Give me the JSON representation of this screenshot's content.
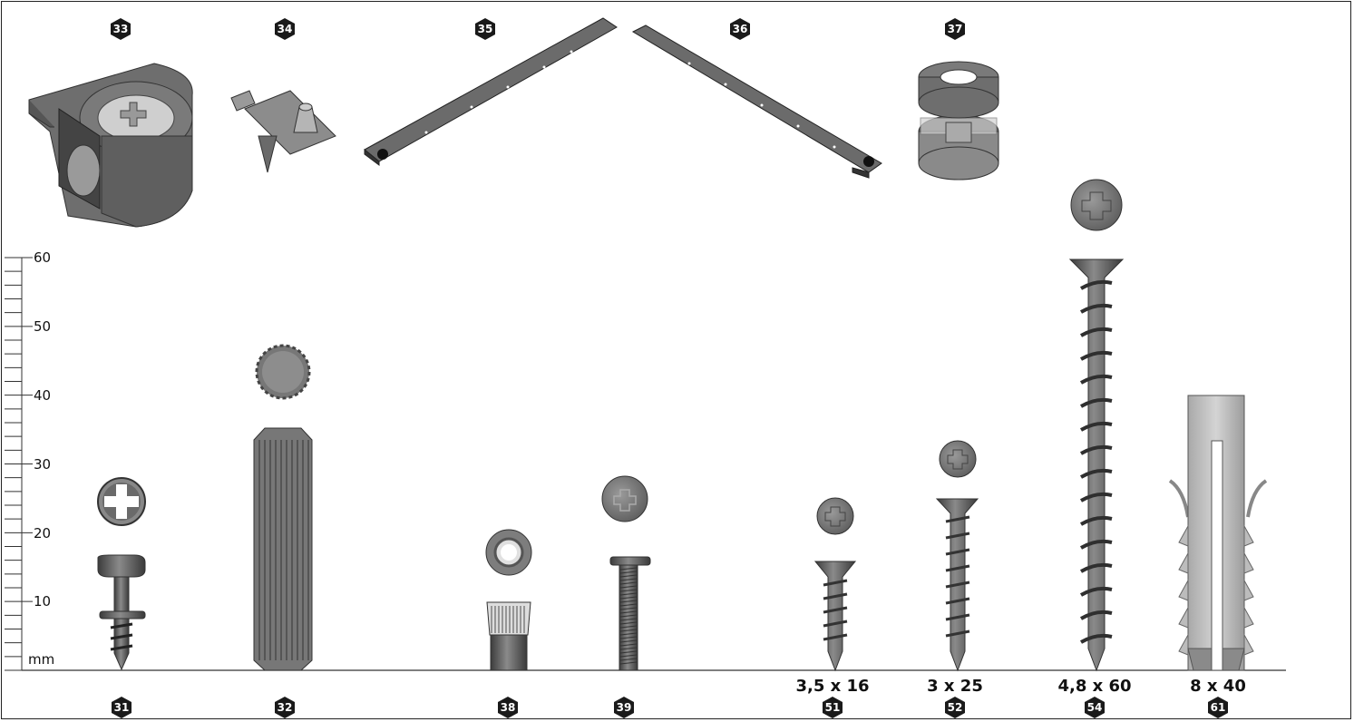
{
  "top_parts": [
    {
      "number": "33",
      "icon": "cam-lock-housing-icon"
    },
    {
      "number": "34",
      "icon": "shelf-support-pin-icon"
    },
    {
      "number": "35",
      "icon": "drawer-runner-left-icon"
    },
    {
      "number": "36",
      "icon": "drawer-runner-right-icon"
    },
    {
      "number": "37",
      "icon": "adjustable-foot-icon"
    }
  ],
  "bottom_parts": [
    {
      "number": "31",
      "icon": "cam-bolt-icon"
    },
    {
      "number": "32",
      "icon": "wooden-dowel-icon"
    },
    {
      "number": "38",
      "icon": "threaded-insert-icon"
    },
    {
      "number": "39",
      "icon": "connector-bolt-icon"
    },
    {
      "number": "51",
      "icon": "screw-icon",
      "size": "3,5 x 16"
    },
    {
      "number": "52",
      "icon": "screw-icon",
      "size": "3 x 25"
    },
    {
      "number": "54",
      "icon": "screw-icon",
      "size": "4,8 x 60"
    },
    {
      "number": "61",
      "icon": "wall-plug-icon",
      "size": "8 x 40"
    }
  ],
  "ruler": {
    "unit": "mm",
    "labels": [
      "10",
      "20",
      "30",
      "40",
      "50",
      "60"
    ]
  },
  "colors": {
    "badge": "#1a1a1a",
    "part_dark": "#555555",
    "part_mid": "#8a8a8a",
    "part_light": "#bdbdbd"
  }
}
